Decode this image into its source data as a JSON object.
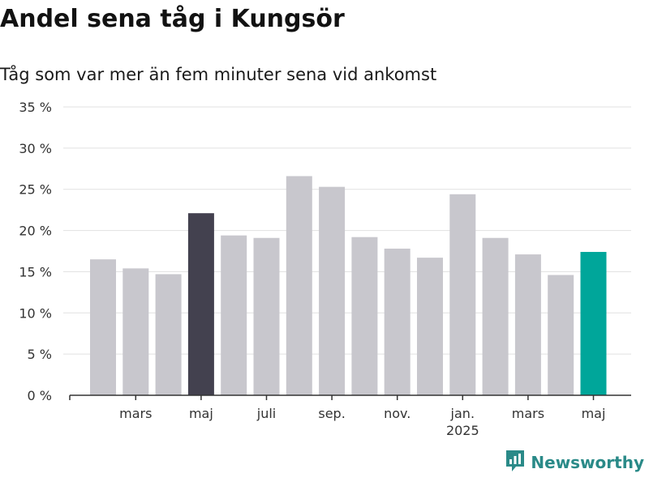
{
  "header": {
    "title": "Andel sena tåg i Kungsör",
    "subtitle": "Tåg som var mer än fem minuter sena vid ankomst"
  },
  "chart_data": {
    "type": "bar",
    "title": "Andel sena tåg i Kungsör",
    "subtitle": "Tåg som var mer än fem minuter sena vid ankomst",
    "xlabel": "",
    "ylabel": "",
    "ylim": [
      0,
      35
    ],
    "yticks": [
      0,
      5,
      10,
      15,
      20,
      25,
      30,
      35
    ],
    "ytick_suffix": " %",
    "grid": true,
    "categories": [
      "2024-02",
      "2024-03",
      "2024-04",
      "2024-05",
      "2024-06",
      "2024-07",
      "2024-08",
      "2024-09",
      "2024-10",
      "2024-11",
      "2024-12",
      "2025-01",
      "2025-02",
      "2025-03",
      "2025-04",
      "2025-05"
    ],
    "values": [
      16.5,
      15.4,
      14.7,
      22.1,
      19.4,
      19.1,
      26.6,
      25.3,
      19.2,
      17.8,
      16.7,
      24.4,
      19.1,
      17.1,
      14.6,
      17.4
    ],
    "x_tick_labels": [
      {
        "index": 1,
        "label": "mars"
      },
      {
        "index": 3,
        "label": "maj"
      },
      {
        "index": 5,
        "label": "juli"
      },
      {
        "index": 7,
        "label": "sep."
      },
      {
        "index": 9,
        "label": "nov."
      },
      {
        "index": 11,
        "label": "jan.",
        "sublabel": "2025"
      },
      {
        "index": 13,
        "label": "mars"
      },
      {
        "index": 15,
        "label": "maj"
      }
    ],
    "colors": {
      "default": "#c8c7cd",
      "highlight_previous_year": "#43414f",
      "highlight_current": "#00a69a",
      "grid": "#e1e1e1",
      "axis": "#333333"
    },
    "highlight_indices": {
      "3": "highlight_previous_year",
      "15": "highlight_current"
    }
  },
  "logo": {
    "text": "Newsworthy",
    "icon": "bar-chart-icon",
    "color": "#2a8a88"
  }
}
